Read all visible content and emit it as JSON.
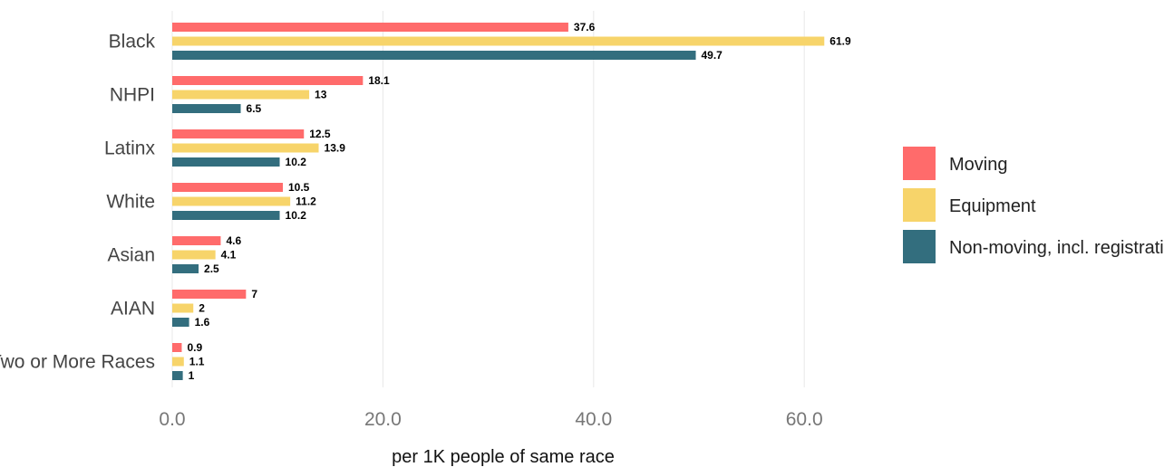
{
  "chart_data": {
    "type": "bar",
    "orientation": "horizontal",
    "categories": [
      "Black",
      "NHPI",
      "Latinx",
      "White",
      "Asian",
      "AIAN",
      "Two or More Races"
    ],
    "series": [
      {
        "name": "Moving",
        "color": "#FF6B6B",
        "values": [
          37.6,
          18.1,
          12.5,
          10.5,
          4.6,
          7,
          0.9
        ],
        "labels": [
          "37.6",
          "18.1",
          "12.5",
          "10.5",
          "4.6",
          "7",
          "0.9"
        ]
      },
      {
        "name": "Equipment",
        "color": "#F7D46A",
        "values": [
          61.9,
          13,
          13.9,
          11.2,
          4.1,
          2,
          1.1
        ],
        "labels": [
          "61.9",
          "13",
          "13.9",
          "11.2",
          "4.1",
          "2",
          "1.1"
        ]
      },
      {
        "name": "Non-moving, incl. registration",
        "color": "#336E7E",
        "values": [
          49.7,
          6.5,
          10.2,
          10.2,
          2.5,
          1.6,
          1
        ],
        "labels": [
          "49.7",
          "6.5",
          "10.2",
          "10.2",
          "2.5",
          "1.6",
          "1"
        ]
      }
    ],
    "xticks": [
      0,
      20,
      40,
      60
    ],
    "xtick_labels": [
      "0.0",
      "20.0",
      "40.0",
      "60.0"
    ],
    "xlim": [
      0,
      75
    ],
    "xlabel": "per 1K people of same race",
    "ylabel": "",
    "grid": "vertical",
    "legend_position": "right"
  }
}
